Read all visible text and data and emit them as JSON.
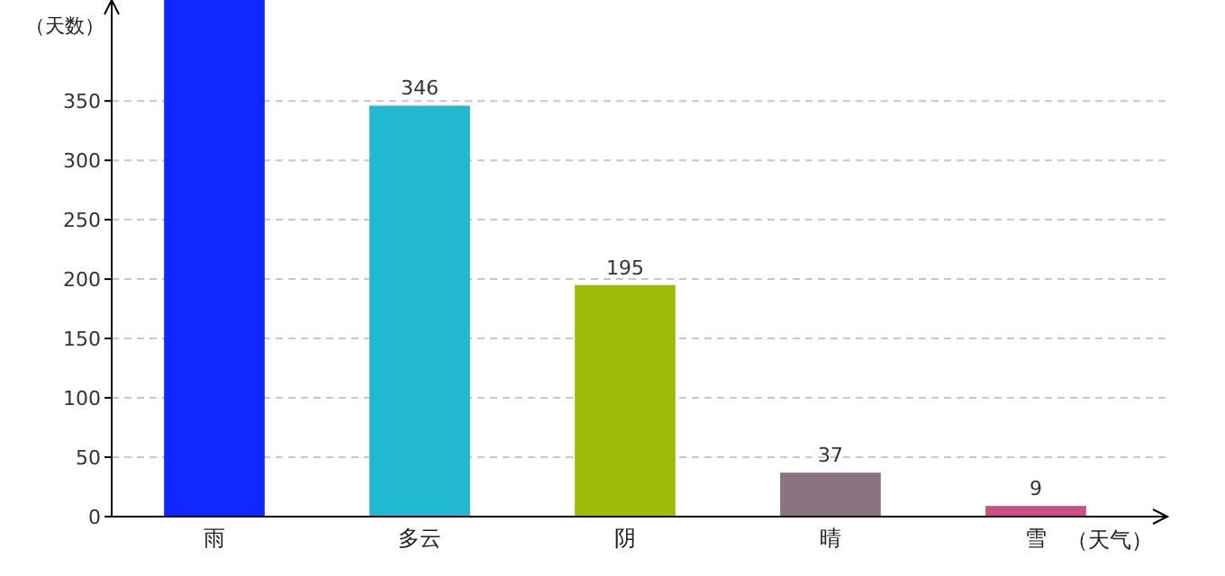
{
  "chart_data": {
    "type": "bar",
    "xlabel": "（天气）",
    "ylabel": "（天数）",
    "categories": [
      "雨",
      "多云",
      "阴",
      "晴",
      "雪"
    ],
    "values": [
      435,
      346,
      195,
      37,
      9
    ],
    "colors": [
      "#1027ff",
      "#22b8cf",
      "#9fbb0a",
      "#8a7482",
      "#cc4f8a"
    ],
    "value_labels": [
      null,
      "346",
      "195",
      "37",
      "9"
    ],
    "ylim": [
      0,
      435
    ],
    "yticks": [
      0,
      50,
      100,
      150,
      200,
      250,
      300,
      350
    ],
    "grid": "y"
  }
}
